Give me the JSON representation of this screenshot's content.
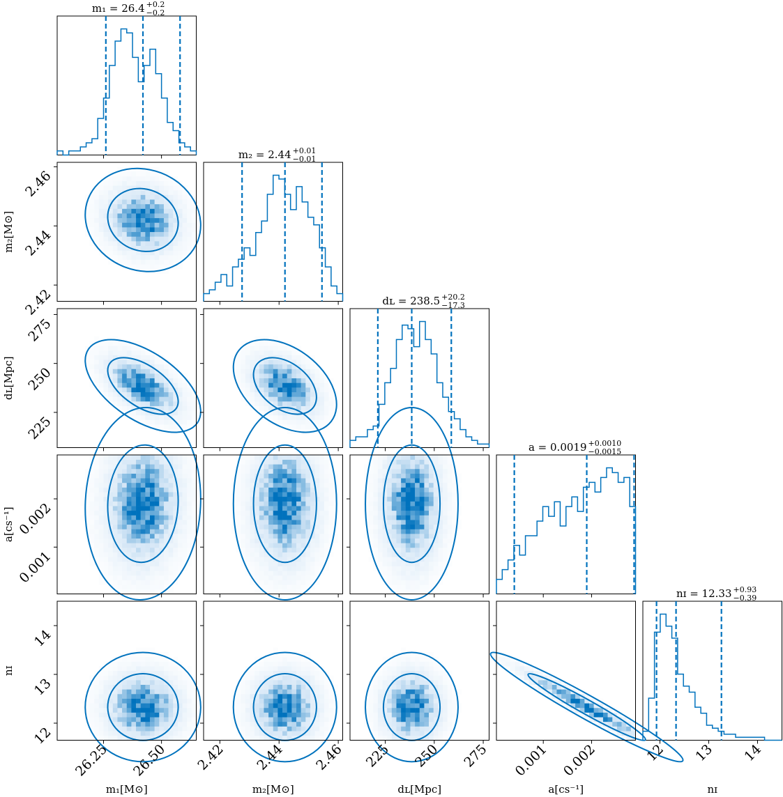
{
  "chart_data": {
    "type": "corner",
    "accent_color": "#0072bd",
    "parameters": [
      {
        "key": "m1",
        "label": "m₁[M⊙]",
        "range": [
          26.05,
          26.65
        ],
        "ticks": [
          26.25,
          26.5
        ],
        "tick_labels": [
          "26.25",
          "26.50"
        ],
        "mean": 26.42,
        "sd": 0.1
      },
      {
        "key": "m2",
        "label": "m₂[M⊙]",
        "range": [
          2.4145,
          2.4615
        ],
        "ticks": [
          2.42,
          2.44,
          2.46
        ],
        "tick_labels": [
          "2.42",
          "2.44",
          "2.46"
        ],
        "mean": 2.442,
        "sd": 0.007
      },
      {
        "key": "dL",
        "label": "dʟ[Mpc]",
        "range": [
          207,
          278
        ],
        "ticks": [
          225,
          250,
          275
        ],
        "tick_labels": [
          "225",
          "250",
          "275"
        ],
        "mean": 238.5,
        "sd": 9.5
      },
      {
        "key": "a",
        "label": "a[cs⁻¹]",
        "range": [
          3e-05,
          0.00291
        ],
        "ticks": [
          0.001,
          0.002
        ],
        "tick_labels": [
          "0.001",
          "0.002"
        ],
        "mean": 0.0019,
        "sd": 0.0008
      },
      {
        "key": "nI",
        "label": "nɪ",
        "range": [
          11.65,
          14.5
        ],
        "ticks": [
          12,
          13,
          14
        ],
        "tick_labels": [
          "12",
          "13",
          "14"
        ],
        "mean": 12.33,
        "sd": 0.45
      }
    ],
    "titles": [
      {
        "lhs": "m₁ = 26.4",
        "up": "+0.2",
        "down": "−0.2"
      },
      {
        "lhs": "m₂ = 2.44",
        "up": "+0.01",
        "down": "−0.01"
      },
      {
        "lhs": "dʟ = 238.5",
        "up": "+20.2",
        "down": "−17.3"
      },
      {
        "lhs": "a = 0.0019",
        "up": "+0.0010",
        "down": "−0.0015"
      },
      {
        "lhs": "nɪ = 12.33",
        "up": "+0.93",
        "down": "−0.39"
      }
    ],
    "quantiles": [
      [
        26.26,
        26.42,
        26.58
      ],
      [
        2.4275,
        2.442,
        2.4545
      ],
      [
        221.2,
        238.5,
        258.7
      ],
      [
        0.0004,
        0.0019,
        0.00288
      ],
      [
        11.93,
        12.33,
        13.26
      ]
    ],
    "histograms": [
      [
        1,
        0,
        1,
        1,
        2,
        3,
        4,
        9,
        14,
        22,
        28,
        31,
        30,
        24,
        18,
        22,
        26,
        20,
        14,
        8,
        6,
        3,
        2,
        1
      ],
      [
        2,
        3,
        5,
        7,
        4,
        9,
        11,
        14,
        12,
        18,
        21,
        28,
        33,
        32,
        28,
        24,
        30,
        26,
        22,
        20,
        14,
        9,
        4,
        2
      ],
      [
        2,
        3,
        3,
        5,
        6,
        12,
        18,
        22,
        30,
        34,
        33,
        28,
        35,
        30,
        26,
        18,
        14,
        10,
        8,
        5,
        3,
        2,
        1,
        1
      ],
      [
        3,
        5,
        7,
        10,
        8,
        12,
        12,
        15,
        18,
        16,
        19,
        14,
        18,
        20,
        17,
        22,
        23,
        21,
        24,
        26,
        25,
        23,
        24,
        18
      ],
      [
        3,
        14,
        36,
        42,
        38,
        34,
        22,
        18,
        16,
        11,
        9,
        5,
        4,
        3,
        2,
        2,
        1,
        1,
        1,
        1,
        1,
        0,
        0,
        0
      ]
    ],
    "correlations": {
      "m2|m1": -0.1,
      "dL|m1": -0.55,
      "a|m1": 0.05,
      "nI|m1": 0.0,
      "dL|m2": -0.4,
      "a|m2": 0.0,
      "nI|m2": 0.0,
      "a|dL": 0.0,
      "nI|dL": 0.0,
      "nI|a": -0.97
    },
    "contour_levels": [
      "1σ",
      "2σ"
    ],
    "grid": false
  }
}
